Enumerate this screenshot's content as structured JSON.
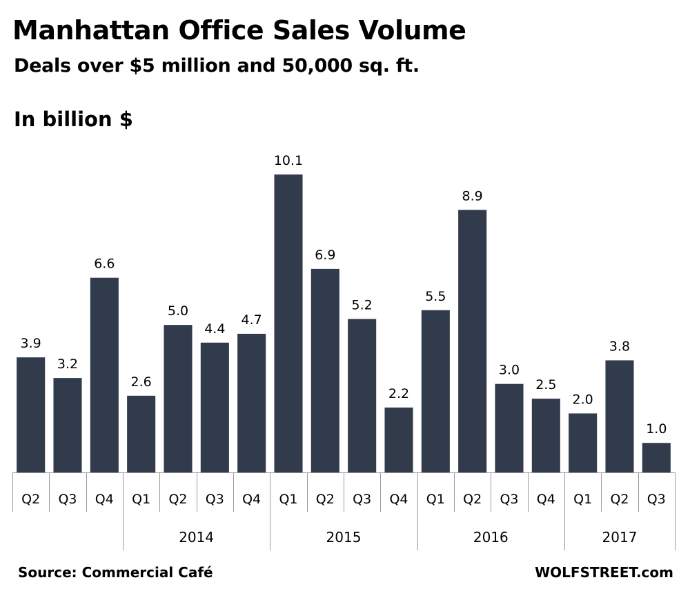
{
  "chart_data": {
    "type": "bar",
    "title": "Manhattan Office Sales Volume",
    "subtitle": "Deals over $5 million and 50,000 sq. ft.",
    "ylabel": "In billion $",
    "categories": [
      "Q2",
      "Q3",
      "Q4",
      "Q1",
      "Q2",
      "Q3",
      "Q4",
      "Q1",
      "Q2",
      "Q3",
      "Q4",
      "Q1",
      "Q2",
      "Q3",
      "Q4",
      "Q1",
      "Q2",
      "Q3"
    ],
    "values": [
      3.9,
      3.2,
      6.6,
      2.6,
      5.0,
      4.4,
      4.7,
      10.1,
      6.9,
      5.2,
      2.2,
      5.5,
      8.9,
      3.0,
      2.5,
      2.0,
      3.8,
      1.0
    ],
    "value_labels": [
      "3.9",
      "3.2",
      "6.6",
      "2.6",
      "5.0",
      "4.4",
      "4.7",
      "10.1",
      "6.9",
      "5.2",
      "2.2",
      "5.5",
      "8.9",
      "3.0",
      "2.5",
      "2.0",
      "3.8",
      "1.0"
    ],
    "year_groups": [
      {
        "label": "",
        "start": 0,
        "end": 2
      },
      {
        "label": "2014",
        "start": 3,
        "end": 6
      },
      {
        "label": "2015",
        "start": 7,
        "end": 10
      },
      {
        "label": "2016",
        "start": 11,
        "end": 14
      },
      {
        "label": "2017",
        "start": 15,
        "end": 17
      }
    ],
    "ylim": [
      0,
      10.1
    ],
    "grid": false,
    "bar_color": "#313b4c",
    "source": "Source: Commercial Café",
    "credit": "WOLFSTREET.com"
  }
}
